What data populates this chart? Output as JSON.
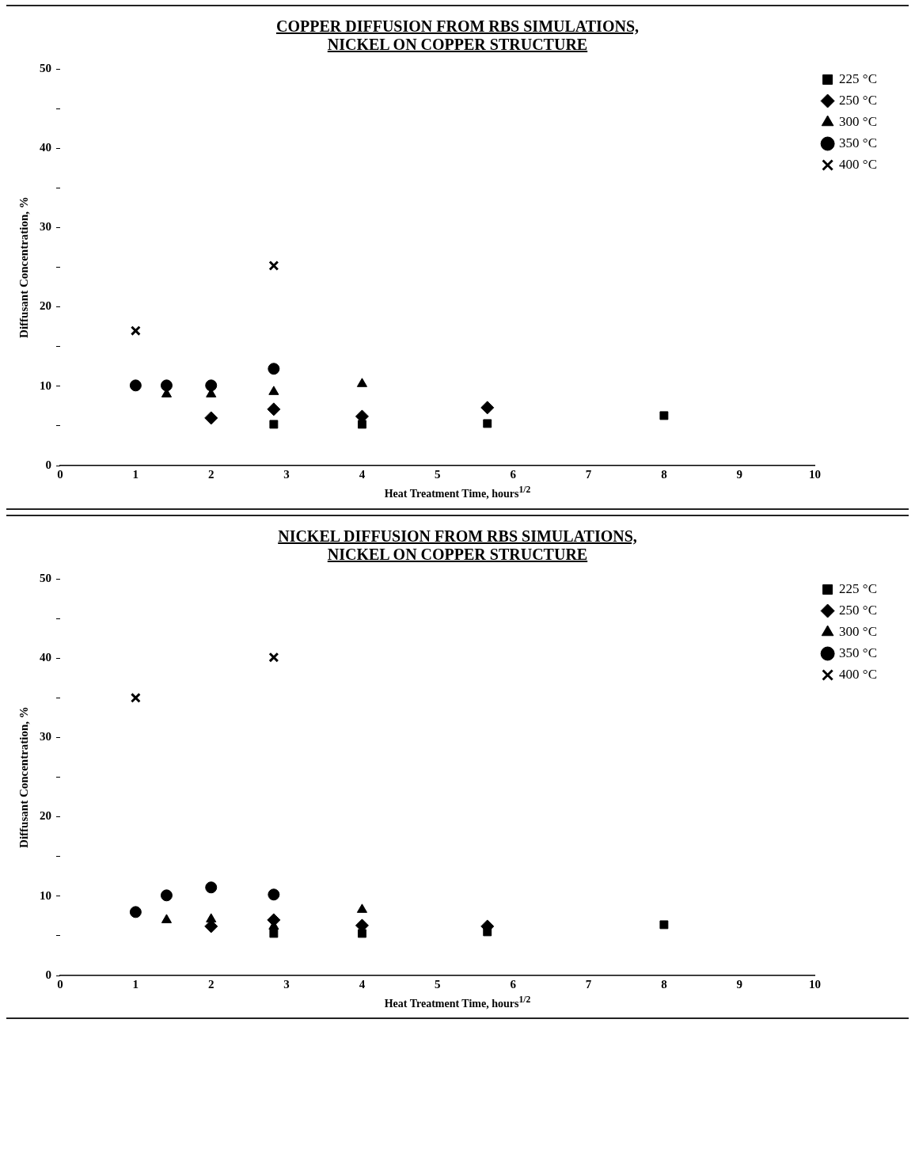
{
  "chart_data": [
    {
      "type": "scatter",
      "title": "COPPER DIFFUSION FROM RBS SIMULATIONS,\nNICKEL ON COPPER STRUCTURE",
      "xlabel": "Heat Treatment Time, hours$^{1/2}$",
      "ylabel": "Diffusant Concentration, %",
      "xlim": [
        0,
        10
      ],
      "xticks": [
        0,
        1,
        2,
        3,
        4,
        5,
        6,
        7,
        8,
        9,
        10
      ],
      "ylim": [
        0,
        50
      ],
      "yticks": [
        0,
        {
          "value": 5,
          "label": null
        },
        10,
        {
          "value": 15,
          "label": null
        },
        20,
        {
          "value": 25,
          "label": null
        },
        30,
        {
          "value": 35,
          "label": null
        },
        40,
        {
          "value": 45,
          "label": null
        },
        50
      ],
      "legend": "top right",
      "series": [
        {
          "name": "225 °C",
          "color": "#000000",
          "marker": "square",
          "x": [
            2.83,
            4,
            5.66,
            8
          ],
          "values": [
            5.2,
            5.2,
            5.3,
            6.3
          ]
        },
        {
          "name": "250 °C",
          "color": "#000000",
          "marker": "diamond",
          "x": [
            2,
            2.83,
            4,
            5.66
          ],
          "values": [
            6,
            7.1,
            6.2,
            7.3
          ]
        },
        {
          "name": "300 °C",
          "color": "#000000",
          "marker": "triangle",
          "x": [
            1.41,
            2,
            2.83,
            4
          ],
          "values": [
            9,
            9,
            9.3,
            10.3
          ]
        },
        {
          "name": "350 °C",
          "color": "#000000",
          "marker": "circle",
          "x": [
            1,
            1.41,
            2,
            2.83
          ],
          "values": [
            10.1,
            10.1,
            10.1,
            12.2
          ]
        },
        {
          "name": "400 °C",
          "color": "#000000",
          "marker": "cross",
          "x": [
            1,
            2.83
          ],
          "values": [
            17,
            25.2
          ]
        }
      ]
    },
    {
      "type": "scatter",
      "title": "NICKEL DIFFUSION FROM RBS SIMULATIONS,\nNICKEL ON COPPER STRUCTURE",
      "xlabel": "Heat Treatment Time, hours$^{1/2}$",
      "ylabel": "Diffusant Concentration, %",
      "xlim": [
        0,
        10
      ],
      "xticks": [
        0,
        1,
        2,
        3,
        4,
        5,
        6,
        7,
        8,
        9,
        10
      ],
      "ylim": [
        0,
        50
      ],
      "yticks": [
        0,
        {
          "value": 5,
          "label": null
        },
        10,
        {
          "value": 15,
          "label": null
        },
        20,
        {
          "value": 25,
          "label": null
        },
        30,
        {
          "value": 35,
          "label": null
        },
        40,
        {
          "value": 45,
          "label": null
        },
        50
      ],
      "legend": "top right",
      "series": [
        {
          "name": "225 °C",
          "color": "#000000",
          "marker": "square",
          "x": [
            2.83,
            4,
            5.66,
            8
          ],
          "values": [
            5.3,
            5.3,
            5.5,
            6.4
          ]
        },
        {
          "name": "250 °C",
          "color": "#000000",
          "marker": "diamond",
          "x": [
            2,
            2.83,
            4,
            5.66
          ],
          "values": [
            6.2,
            7,
            6.3,
            6.2
          ]
        },
        {
          "name": "300 °C",
          "color": "#000000",
          "marker": "triangle",
          "x": [
            1.41,
            2,
            2.83,
            4
          ],
          "values": [
            7,
            7.1,
            6.2,
            8.3
          ]
        },
        {
          "name": "350 °C",
          "color": "#000000",
          "marker": "circle",
          "x": [
            1,
            1.41,
            2,
            2.83
          ],
          "values": [
            8,
            10.1,
            11.1,
            10.2
          ]
        },
        {
          "name": "400 °C",
          "color": "#000000",
          "marker": "cross",
          "x": [
            1,
            2.83
          ],
          "values": [
            35,
            40.1
          ]
        }
      ]
    }
  ]
}
